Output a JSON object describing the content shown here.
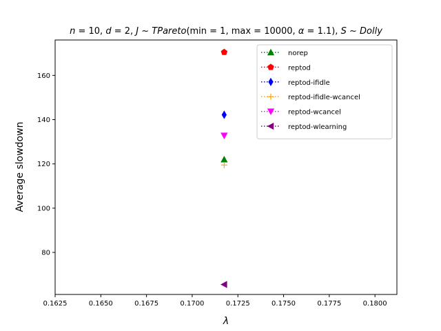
{
  "chart_data": {
    "type": "scatter",
    "title": "n = 10, d = 2, J ~ TPareto(min = 1, max = 10000, α = 1.1), S ~ Dolly",
    "title_parts": {
      "n": "n",
      "eq1": " = 10, ",
      "d": "d",
      "eq2": " = 2, ",
      "J": "J",
      "sim1": " ~ ",
      "dist": "TPareto",
      "params_open": "(min = 1, max = 10000, ",
      "alpha": "α",
      "params_close": " = 1.1), ",
      "S": "S",
      "sim2": " ~ ",
      "dolly": "Dolly"
    },
    "xlabel": "λ",
    "ylabel": "Average slowdown",
    "xlim": [
      0.1625,
      0.1812
    ],
    "ylim": [
      61,
      176
    ],
    "xticks": [
      0.1625,
      0.165,
      0.1675,
      0.17,
      0.1725,
      0.175,
      0.1775,
      0.18
    ],
    "xtick_labels": [
      "0.1625",
      "0.1650",
      "0.1675",
      "0.1700",
      "0.1725",
      "0.1750",
      "0.1775",
      "0.1800"
    ],
    "yticks": [
      80,
      100,
      120,
      140,
      160
    ],
    "ytick_labels": [
      "80",
      "100",
      "120",
      "140",
      "160"
    ],
    "grid": false,
    "legend_position": "top-right",
    "series": [
      {
        "name": "norep",
        "color": "#008000",
        "marker": "triangle-up",
        "x": [
          0.17175
        ],
        "y": [
          122
        ]
      },
      {
        "name": "reptod",
        "color": "#ff0000",
        "marker": "pentagon",
        "x": [
          0.17175
        ],
        "y": [
          170.5
        ]
      },
      {
        "name": "reptod-ifidle",
        "color": "#0000ff",
        "marker": "thin-diamond",
        "x": [
          0.17175
        ],
        "y": [
          142.2
        ]
      },
      {
        "name": "reptod-ifidle-wcancel",
        "color": "#ffa500",
        "marker": "plus",
        "x": [
          0.17175
        ],
        "y": [
          119.5
        ]
      },
      {
        "name": "reptod-wcancel",
        "color": "#ff00ff",
        "marker": "triangle-down",
        "x": [
          0.17175
        ],
        "y": [
          132.8
        ]
      },
      {
        "name": "reptod-wlearning",
        "color": "#800080",
        "marker": "triangle-left",
        "x": [
          0.17175
        ],
        "y": [
          65.5
        ]
      }
    ]
  }
}
